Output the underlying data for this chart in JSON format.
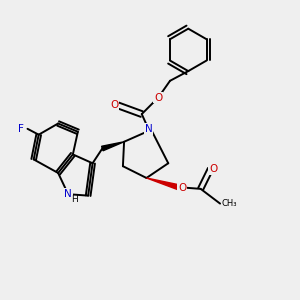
{
  "background_color": "#efefef",
  "bond_color": "#000000",
  "N_color": "#0000cc",
  "O_color": "#cc0000",
  "F_color": "#0000cc",
  "bond_width": 1.4,
  "fig_width": 3.0,
  "fig_height": 3.0,
  "dpi": 100,
  "xlim": [
    0,
    10
  ],
  "ylim": [
    0,
    10
  ]
}
